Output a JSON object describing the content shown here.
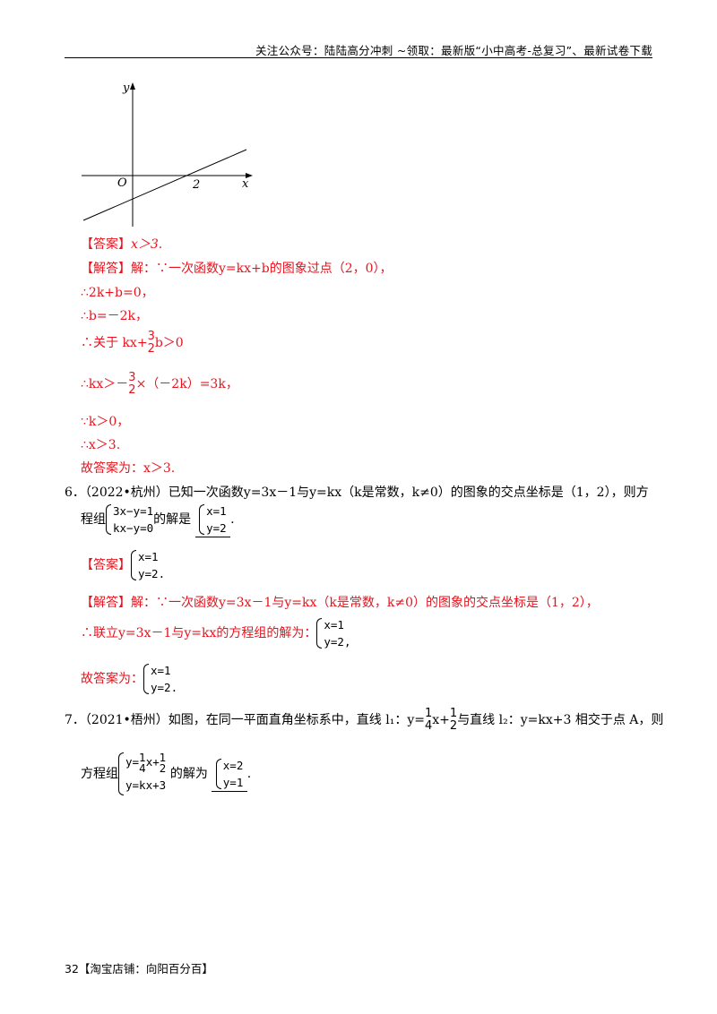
{
  "header": {
    "text": "关注公众号：陆陆高分冲刺  ~领取：最新版“小中高考-总复习”、最新试卷下载"
  },
  "graph": {
    "y_label": "y",
    "x_label": "x",
    "origin_label": "O",
    "point_label": "2"
  },
  "q5": {
    "answer_tag": "【答案】",
    "answer": "x＞3.",
    "solution_tag": "【解答】",
    "sol_line1": "解：∵一次函数y=kx+b的图象过点（2，0），",
    "sol_line2": "∴2k+b=0，",
    "sol_line3": "∴b=－2k，",
    "sol_line4_pre": "∴关于 kx+",
    "sol_line4_num": "3",
    "sol_line4_den": "2",
    "sol_line4_post": "b＞0",
    "sol_line5_pre": "∴kx＞－",
    "sol_line5_num": "3",
    "sol_line5_den": "2",
    "sol_line5_post": "×（－2k）=3k，",
    "sol_line6": "∵k＞0，",
    "sol_line7": "∴x＞3.",
    "final": "故答案为：x＞3."
  },
  "q6": {
    "stem1": "6．（2022•杭州）已知一次函数y=3x－1与y=kx（k是常数，k≠0）的图象的交点坐标是（1，2），则方",
    "stem2_pre": "程组",
    "sys_eq1": "3x−y=1",
    "sys_eq2": "kx−y=0",
    "stem2_mid": "的解是",
    "ans_eq1": "x=1",
    "ans_eq2": "y=2",
    "stem2_post": ".",
    "answer_tag": "【答案】",
    "answer_eq1": "x=1",
    "answer_eq2": "y=2.",
    "solution_tag": "【解答】",
    "sol_line1": "解：∵一次函数y=3x－1与y=kx（k是常数，k≠0）的图象的交点坐标是（1，2），",
    "sol_line2": "∴联立y=3x－1与y=kx的方程组的解为：",
    "sol_eq1": "x=1",
    "sol_eq2": "y=2,",
    "final_pre": "故答案为：",
    "final_eq1": "x=1",
    "final_eq2": "y=2."
  },
  "q7": {
    "stem1_pre": "7．（2021•梧州）如图，在同一平面直角坐标系中，直线 l₁：y=",
    "stem1_num1": "1",
    "stem1_den1": "4",
    "stem1_mid": "x+",
    "stem1_num2": "1",
    "stem1_den2": "2",
    "stem1_post": "与直线 l₂：y=kx+3 相交于点 A，则",
    "stem2_pre": "方程组",
    "sys_eq1_pre": "y=",
    "sys_eq1_num": "1",
    "sys_eq1_den": "4",
    "sys_eq1_post": "x+",
    "sys_eq1_num2": "1",
    "sys_eq1_den2": "2",
    "sys_eq2": "y=kx+3",
    "stem2_mid": "的解为",
    "ans_eq1": "x=2",
    "ans_eq2": "y=1",
    "stem2_post": "."
  },
  "footer": {
    "page": "32",
    "text": "【淘宝店铺：向阳百分百】"
  }
}
